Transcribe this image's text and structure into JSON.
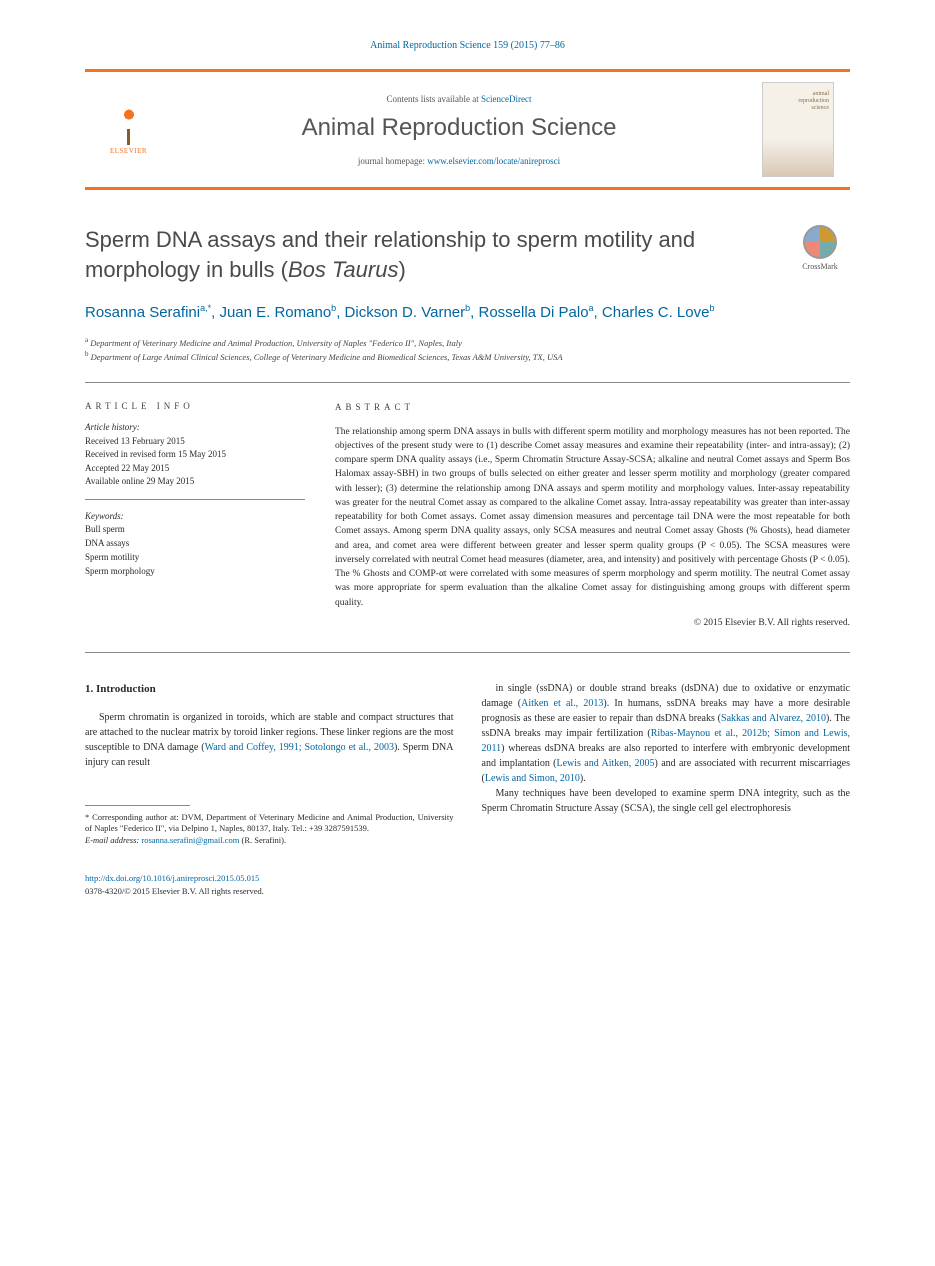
{
  "citation": "Animal Reproduction Science 159 (2015) 77–86",
  "header": {
    "contents_prefix": "Contents lists available at ",
    "contents_link": "ScienceDirect",
    "journal_title": "Animal Reproduction Science",
    "homepage_prefix": "journal homepage: ",
    "homepage_url": "www.elsevier.com/locate/anireprosci",
    "publisher": "ELSEVIER",
    "cover_label_1": "animal",
    "cover_label_2": "reproduction",
    "cover_label_3": "science"
  },
  "title": {
    "main": "Sperm DNA assays and their relationship to sperm motility and morphology in bulls (",
    "italic": "Bos Taurus",
    "close": ")"
  },
  "crossmark_label": "CrossMark",
  "authors_html": "Rosanna Serafini",
  "authors": [
    {
      "name": "Rosanna Serafini",
      "sup": "a,*"
    },
    {
      "name": "Juan E. Romano",
      "sup": "b"
    },
    {
      "name": "Dickson D. Varner",
      "sup": "b"
    },
    {
      "name": "Rossella Di Palo",
      "sup": "a"
    },
    {
      "name": "Charles C. Love",
      "sup": "b"
    }
  ],
  "affiliations": [
    {
      "sup": "a",
      "text": "Department of Veterinary Medicine and Animal Production, University of Naples \"Federico II\", Naples, Italy"
    },
    {
      "sup": "b",
      "text": "Department of Large Animal Clinical Sciences, College of Veterinary Medicine and Biomedical Sciences, Texas A&M University, TX, USA"
    }
  ],
  "article_info": {
    "heading": "ARTICLE INFO",
    "history_label": "Article history:",
    "history": [
      "Received 13 February 2015",
      "Received in revised form 15 May 2015",
      "Accepted 22 May 2015",
      "Available online 29 May 2015"
    ],
    "keywords_label": "Keywords:",
    "keywords": [
      "Bull sperm",
      "DNA assays",
      "Sperm motility",
      "Sperm morphology"
    ]
  },
  "abstract": {
    "heading": "ABSTRACT",
    "text": "The relationship among sperm DNA assays in bulls with different sperm motility and morphology measures has not been reported. The objectives of the present study were to (1) describe Comet assay measures and examine their repeatability (inter- and intra-assay); (2) compare sperm DNA quality assays (i.e., Sperm Chromatin Structure Assay-SCSA; alkaline and neutral Comet assays and Sperm Bos Halomax assay-SBH) in two groups of bulls selected on either greater and lesser sperm motility and morphology (greater compared with lesser); (3) determine the relationship among DNA assays and sperm motility and morphology values. Inter-assay repeatability was greater for the neutral Comet assay as compared to the alkaline Comet assay. Intra-assay repeatability was greater than inter-assay repeatability for both Comet assays. Comet assay dimension measures and percentage tail DNA were the most repeatable for both Comet assays. Among sperm DNA quality assays, only SCSA measures and neutral Comet assay Ghosts (% Ghosts), head diameter and area, and comet area were different between greater and lesser sperm quality groups (P < 0.05). The SCSA measures were inversely correlated with neutral Comet head measures (diameter, area, and intensity) and positively with percentage Ghosts (P < 0.05). The % Ghosts and COMP-αt were correlated with some measures of sperm morphology and sperm motility. The neutral Comet assay was more appropriate for sperm evaluation than the alkaline Comet assay for distinguishing among groups with different sperm quality.",
    "copyright": "© 2015 Elsevier B.V. All rights reserved."
  },
  "intro": {
    "heading": "1. Introduction",
    "left_p1_a": "Sperm chromatin is organized in toroids, which are stable and compact structures that are attached to the nuclear matrix by toroid linker regions. These linker regions are the most susceptible to DNA damage (",
    "left_cite1": "Ward and Coffey, 1991; Sotolongo et al., 2003",
    "left_p1_b": "). Sperm DNA injury can result",
    "right_p1_a": "in single (ssDNA) or double strand breaks (dsDNA) due to oxidative or enzymatic damage (",
    "right_cite1": "Aitken et al., 2013",
    "right_p1_b": "). In humans, ssDNA breaks may have a more desirable prognosis as these are easier to repair than dsDNA breaks (",
    "right_cite2": "Sakkas and Alvarez, 2010",
    "right_p1_c": "). The ssDNA breaks may impair fertilization (",
    "right_cite3": "Ribas-Maynou et al., 2012b; Simon and Lewis, 2011",
    "right_p1_d": ") whereas dsDNA breaks are also reported to interfere with embryonic development and implantation (",
    "right_cite4": "Lewis and Aitken, 2005",
    "right_p1_e": ") and are associated with recurrent miscarriages (",
    "right_cite5": "Lewis and Simon, 2010",
    "right_p1_f": ").",
    "right_p2": "Many techniques have been developed to examine sperm DNA integrity, such as the Sperm Chromatin Structure Assay (SCSA), the single cell gel electrophoresis"
  },
  "footnote": {
    "corr_label": "* Corresponding author at: DVM, Department of Veterinary Medicine and Animal Production, University of Naples \"Federico II\", via Delpino 1, Naples, 80137, Italy. Tel.: +39 3287591539.",
    "email_label": "E-mail address:",
    "email": "rosanna.serafini@gmail.com",
    "email_name": "(R. Serafini)."
  },
  "footer": {
    "doi": "http://dx.doi.org/10.1016/j.anireprosci.2015.05.015",
    "issn_line": "0378-4320/© 2015 Elsevier B.V. All rights reserved."
  },
  "colors": {
    "accent": "#f47321",
    "link": "#0066a1",
    "text": "#2a2a2a"
  }
}
